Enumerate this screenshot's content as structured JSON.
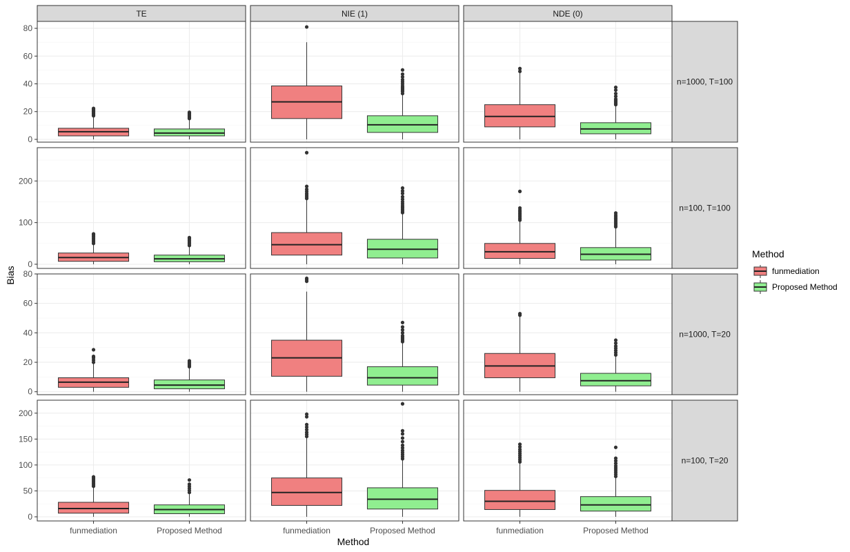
{
  "chart_data": {
    "type": "boxplot",
    "xlabel": "Method",
    "ylabel": "Bias",
    "categories": [
      "funmediation",
      "Proposed Method"
    ],
    "colors": {
      "funmediation": "#f08080",
      "Proposed Method": "#90ee90"
    },
    "legend": {
      "title": "Method",
      "position": "right",
      "entries": [
        "funmediation",
        "Proposed Method"
      ]
    },
    "columns": [
      "TE",
      "NIE (1)",
      "NDE (0)"
    ],
    "rows": [
      {
        "label": "n=1000, T=100",
        "ylim": [
          -2,
          85
        ],
        "yticks": [
          0,
          20,
          40,
          60,
          80
        ],
        "boxes": [
          [
            {
              "q1": 2.5,
              "median": 5.5,
              "q3": 8,
              "wlo": 0,
              "whi": 16,
              "outliers": [
                17,
                17.8,
                18.5,
                19.2,
                20,
                20.8,
                21.5,
                22.3
              ]
            },
            {
              "q1": 2.5,
              "median": 4.5,
              "q3": 7.5,
              "wlo": 0,
              "whi": 14,
              "outliers": [
                15,
                15.8,
                16.5,
                17.3,
                18,
                18.8,
                19.5
              ]
            }
          ],
          [
            {
              "q1": 15,
              "median": 27,
              "q3": 38.5,
              "wlo": 0,
              "whi": 70,
              "outliers": [
                81
              ]
            },
            {
              "q1": 5,
              "median": 10.5,
              "q3": 17,
              "wlo": 0,
              "whi": 32,
              "outliers": [
                33,
                34.5,
                35.5,
                36.5,
                37.5,
                38.5,
                40,
                41.5,
                43,
                45,
                47,
                50
              ]
            }
          ],
          [
            {
              "q1": 9,
              "median": 16.5,
              "q3": 25,
              "wlo": 0,
              "whi": 48,
              "outliers": [
                49,
                51
              ]
            },
            {
              "q1": 4,
              "median": 7.5,
              "q3": 12,
              "wlo": 0,
              "whi": 24,
              "outliers": [
                25,
                26,
                27,
                28,
                29,
                31,
                33,
                35.5,
                37.5
              ]
            }
          ]
        ]
      },
      {
        "label": "n=100, T=100",
        "ylim": [
          -10,
          280
        ],
        "yticks": [
          0,
          100,
          200
        ],
        "boxes": [
          [
            {
              "q1": 7,
              "median": 16,
              "q3": 27,
              "wlo": 0,
              "whi": 48,
              "outliers": [
                50,
                54,
                58,
                62,
                66,
                70,
                73
              ]
            },
            {
              "q1": 6,
              "median": 13,
              "q3": 22,
              "wlo": 0,
              "whi": 43,
              "outliers": [
                45,
                49,
                53,
                57,
                61,
                64
              ]
            }
          ],
          [
            {
              "q1": 22,
              "median": 47,
              "q3": 76,
              "wlo": 0,
              "whi": 155,
              "outliers": [
                158,
                162,
                166,
                170,
                175,
                180,
                187,
                268
              ]
            },
            {
              "q1": 15,
              "median": 36,
              "q3": 60,
              "wlo": 0,
              "whi": 122,
              "outliers": [
                124,
                128,
                132,
                136,
                140,
                145,
                150,
                156,
                162,
                170,
                176,
                183
              ]
            }
          ],
          [
            {
              "q1": 14,
              "median": 30,
              "q3": 50,
              "wlo": 0,
              "whi": 104,
              "outliers": [
                106,
                110,
                114,
                118,
                122,
                126,
                130,
                135,
                175
              ]
            },
            {
              "q1": 10,
              "median": 24,
              "q3": 40,
              "wlo": 0,
              "whi": 88,
              "outliers": [
                90,
                94,
                98,
                102,
                106,
                110,
                114,
                118,
                123
              ]
            }
          ]
        ]
      },
      {
        "label": "n=1000, T=20",
        "ylim": [
          -2,
          80
        ],
        "yticks": [
          0,
          20,
          40,
          60,
          80
        ],
        "boxes": [
          [
            {
              "q1": 3,
              "median": 6.5,
              "q3": 9.5,
              "wlo": 0,
              "whi": 19,
              "outliers": [
                20,
                21.5,
                23,
                24,
                28.5
              ]
            },
            {
              "q1": 2,
              "median": 4.5,
              "q3": 8,
              "wlo": 0,
              "whi": 16,
              "outliers": [
                17,
                18,
                19,
                20,
                21
              ]
            }
          ],
          [
            {
              "q1": 10.5,
              "median": 23,
              "q3": 35,
              "wlo": 0,
              "whi": 68,
              "outliers": [
                75,
                76,
                77
              ]
            },
            {
              "q1": 4.5,
              "median": 9.5,
              "q3": 17,
              "wlo": 0,
              "whi": 33,
              "outliers": [
                34,
                35,
                36,
                37,
                38,
                40,
                42,
                44,
                47
              ]
            }
          ],
          [
            {
              "q1": 9.5,
              "median": 17.5,
              "q3": 26,
              "wlo": 0,
              "whi": 51,
              "outliers": [
                52,
                53
              ]
            },
            {
              "q1": 4,
              "median": 7.5,
              "q3": 12.5,
              "wlo": 0,
              "whi": 24,
              "outliers": [
                25,
                26.5,
                28,
                29.5,
                31,
                33,
                35
              ]
            }
          ]
        ]
      },
      {
        "label": "n=100, T=20",
        "ylim": [
          -8,
          225
        ],
        "yticks": [
          0,
          50,
          100,
          150,
          200
        ],
        "boxes": [
          [
            {
              "q1": 7,
              "median": 16,
              "q3": 28,
              "wlo": 0,
              "whi": 57,
              "outliers": [
                59,
                62,
                65,
                68,
                71,
                74,
                77
              ]
            },
            {
              "q1": 6,
              "median": 14,
              "q3": 23,
              "wlo": 0,
              "whi": 45,
              "outliers": [
                47,
                51,
                55,
                59,
                63,
                71
              ]
            }
          ],
          [
            {
              "q1": 22,
              "median": 47,
              "q3": 75,
              "wlo": 0,
              "whi": 152,
              "outliers": [
                155,
                159,
                163,
                168,
                173,
                178,
                193,
                198
              ]
            },
            {
              "q1": 15,
              "median": 34,
              "q3": 56,
              "wlo": 0,
              "whi": 110,
              "outliers": [
                112,
                116,
                120,
                124,
                128,
                133,
                138,
                145,
                152,
                160,
                166,
                218
              ]
            }
          ],
          [
            {
              "q1": 14,
              "median": 30,
              "q3": 51,
              "wlo": 0,
              "whi": 104,
              "outliers": [
                106,
                110,
                114,
                118,
                122,
                126,
                130,
                135,
                140
              ]
            },
            {
              "q1": 11,
              "median": 23,
              "q3": 39,
              "wlo": 0,
              "whi": 76,
              "outliers": [
                78,
                82,
                86,
                90,
                94,
                98,
                103,
                108,
                113,
                134
              ]
            }
          ]
        ]
      }
    ]
  }
}
